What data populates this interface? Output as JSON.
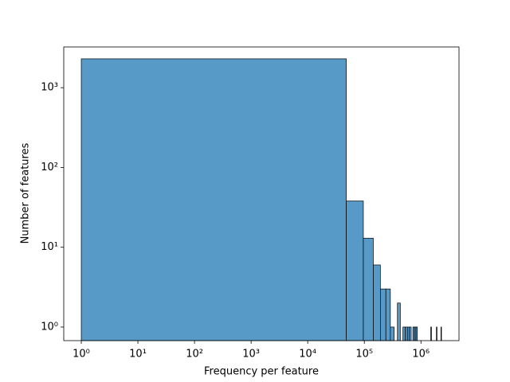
{
  "chart_data": {
    "type": "histogram",
    "xlabel": "Frequency per feature",
    "ylabel": "Number of features",
    "bins": [
      1,
      48001,
      96001,
      144001,
      192001,
      240001,
      288001,
      336001,
      384001,
      432001,
      480001,
      528001,
      576001,
      624001,
      672001,
      720001,
      768001,
      816001,
      864001,
      912001,
      960001,
      1008001,
      1056001,
      1104001,
      1152001,
      1200001,
      1248001,
      1296001,
      1344001,
      1392001,
      1440001,
      1488001,
      1536001,
      1584001,
      1632001,
      1680001,
      1728001,
      1776001,
      1824001,
      1872001,
      1920001,
      1968001,
      2016001,
      2064001,
      2112001,
      2160001,
      2208001,
      2256001,
      2304001,
      2352001,
      2400001
    ],
    "values": [
      2300,
      38,
      13,
      6,
      3,
      3,
      1,
      0,
      2,
      0,
      1,
      1,
      1,
      1,
      0,
      1,
      1,
      1,
      0,
      0,
      0,
      0,
      0,
      0,
      0,
      0,
      0,
      0,
      0,
      0,
      0,
      1,
      0,
      0,
      0,
      0,
      0,
      0,
      0,
      1,
      0,
      0,
      0,
      0,
      0,
      0,
      0,
      1,
      0,
      0
    ],
    "color": "#5799c7",
    "xscale": "log",
    "yscale": "log",
    "xlim": [
      0.49,
      4700000
    ],
    "ylim": [
      0.676,
      3240
    ],
    "xticks": [
      {
        "value": 1,
        "label": "10⁰"
      },
      {
        "value": 10,
        "label": "10¹"
      },
      {
        "value": 100,
        "label": "10²"
      },
      {
        "value": 1000,
        "label": "10³"
      },
      {
        "value": 10000,
        "label": "10⁴"
      },
      {
        "value": 100000,
        "label": "10⁵"
      },
      {
        "value": 1000000,
        "label": "10⁶"
      }
    ],
    "yticks": [
      {
        "value": 1,
        "label": "10⁰"
      },
      {
        "value": 10,
        "label": "10¹"
      },
      {
        "value": 100,
        "label": "10²"
      },
      {
        "value": 1000,
        "label": "10³"
      }
    ],
    "grid": false
  }
}
